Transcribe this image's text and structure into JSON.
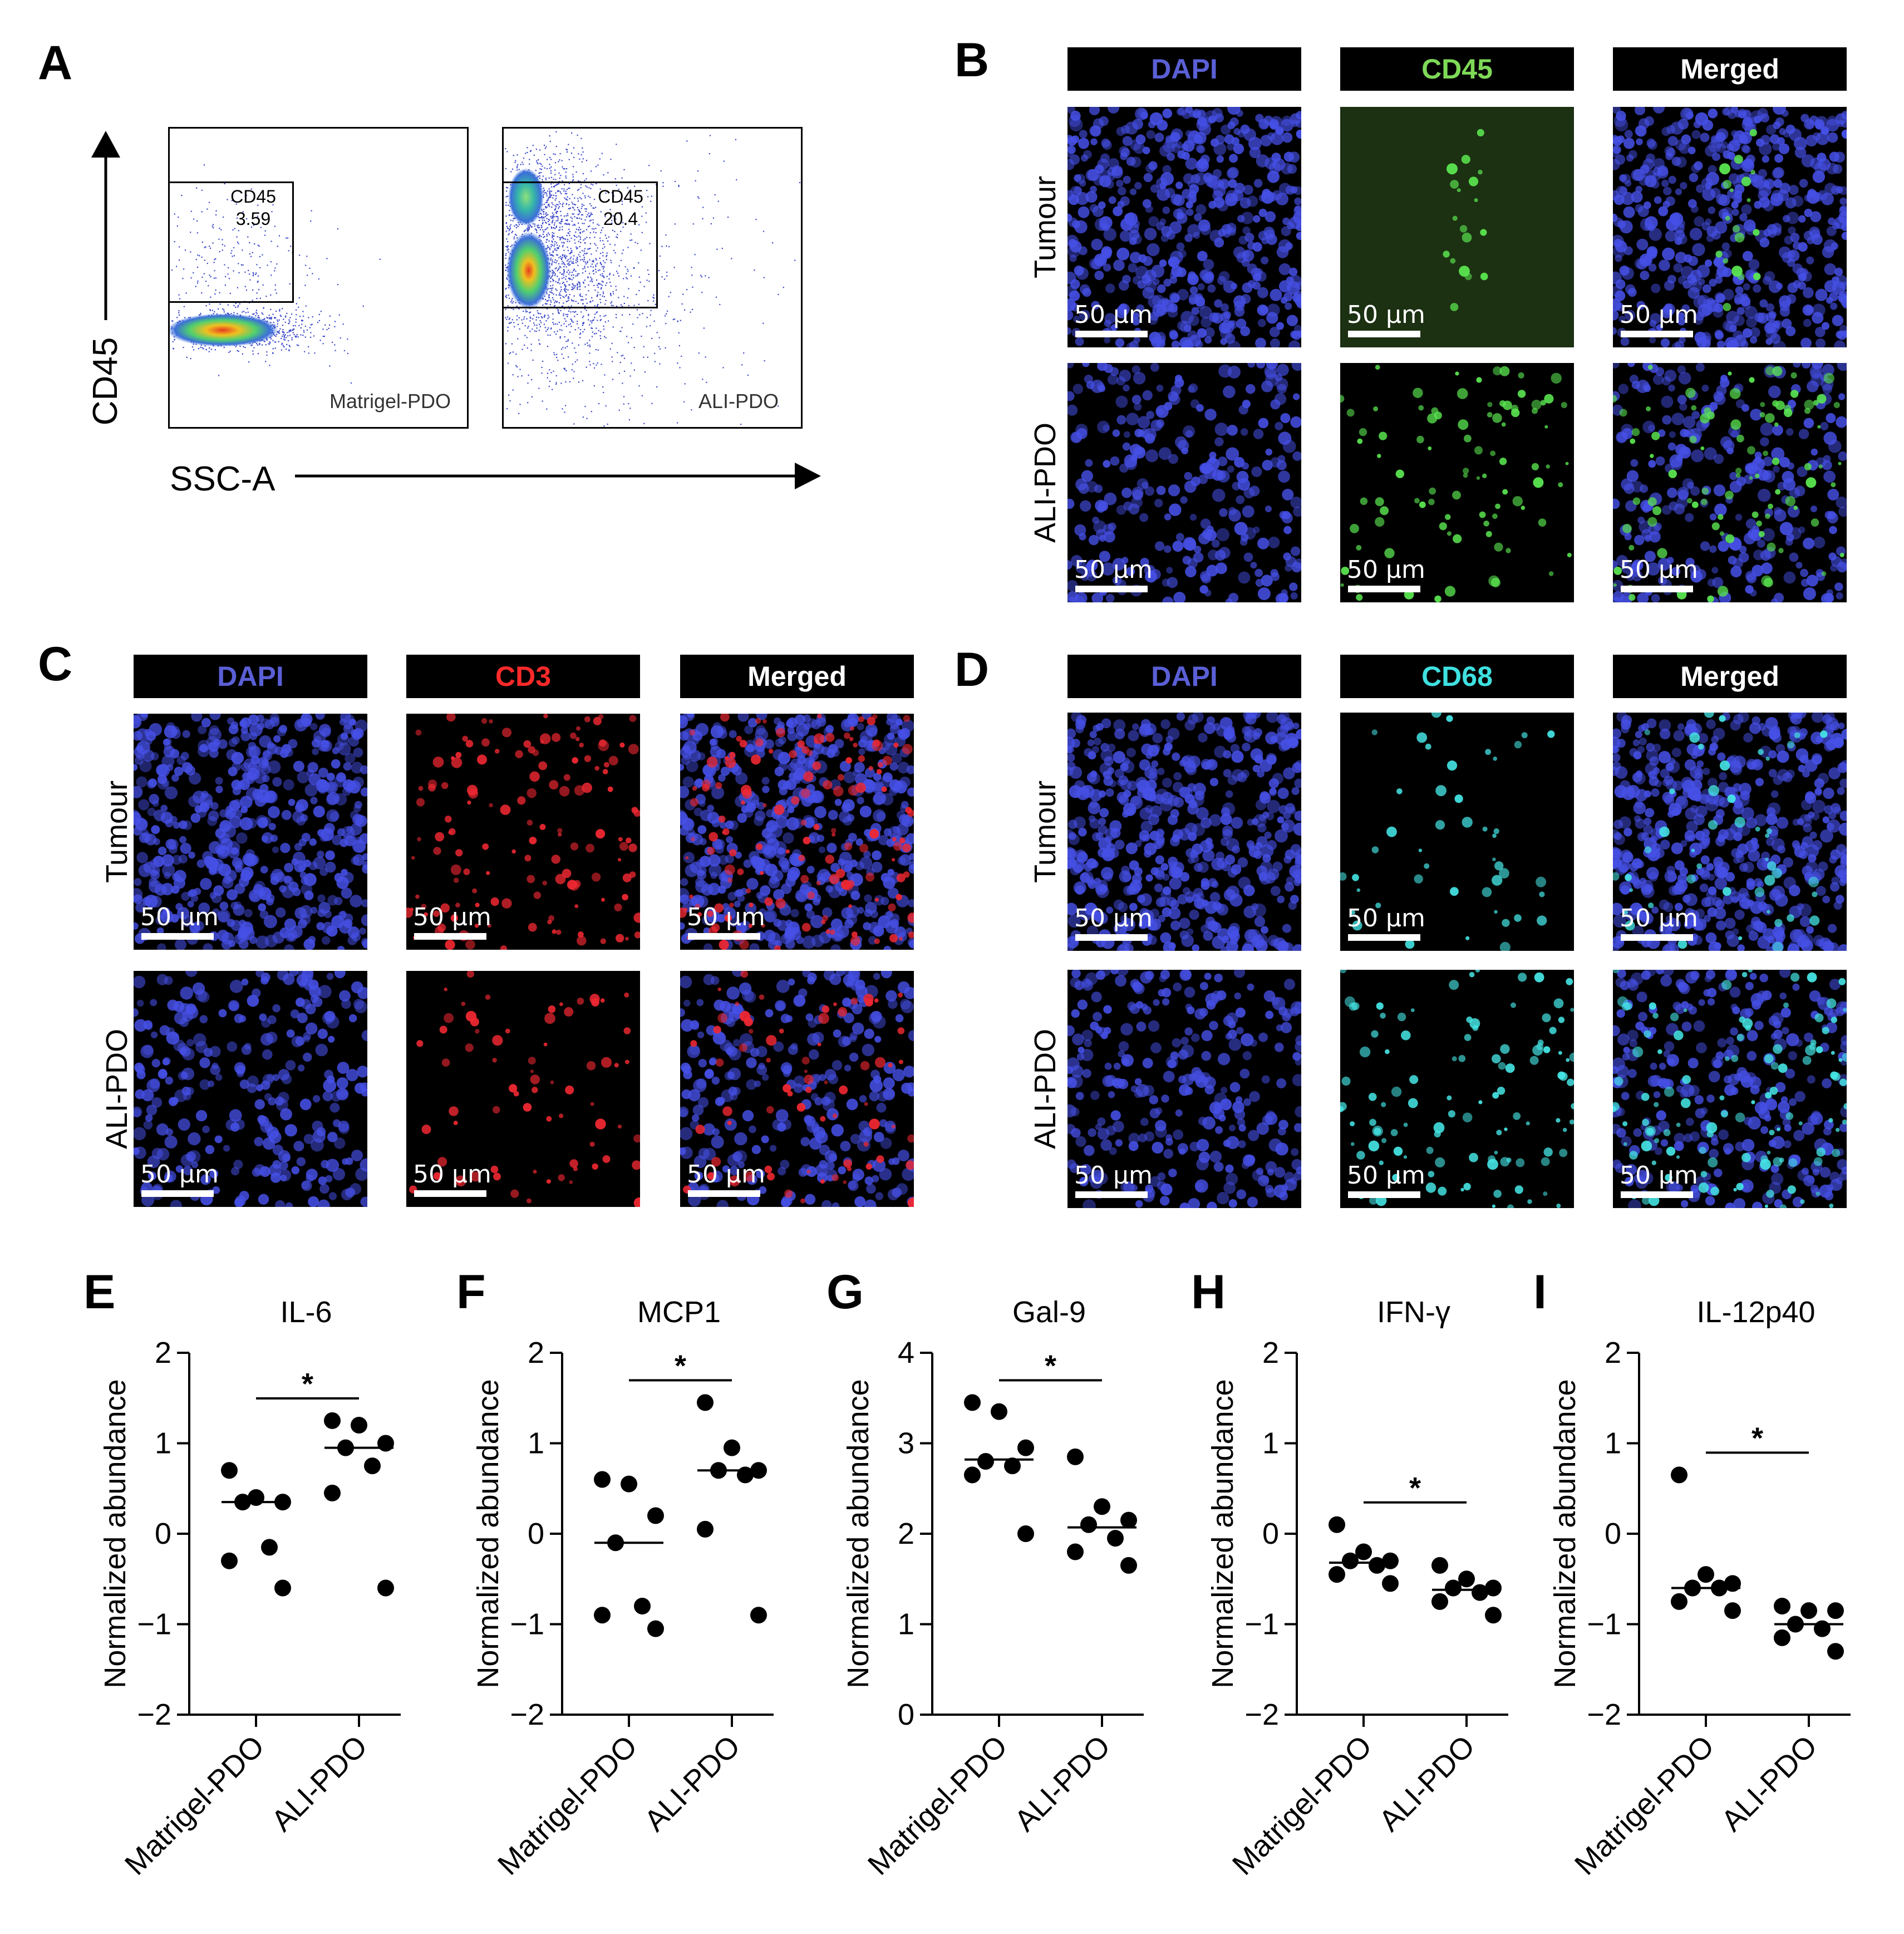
{
  "panels": {
    "A": "A",
    "B": "B",
    "C": "C",
    "D": "D",
    "E": "E",
    "F": "F",
    "G": "G",
    "H": "H",
    "I": "I"
  },
  "flow": {
    "y_axis_label": "CD45",
    "x_axis_label": "SSC-A",
    "plots": [
      {
        "sample": "Matrigel-PDO",
        "gate_label": "CD45",
        "gate_value": "3.59"
      },
      {
        "sample": "ALI-PDO",
        "gate_label": "CD45",
        "gate_value": "20.4"
      }
    ]
  },
  "micrographs": {
    "scale_bar": "50 µm",
    "row_labels": [
      "Tumour",
      "ALI-PDO"
    ],
    "panel_B": {
      "headers": [
        "DAPI",
        "CD45",
        "Merged"
      ],
      "header_colors": [
        "#5a5fd6",
        "#7ed957",
        "#ffffff"
      ]
    },
    "panel_C": {
      "headers": [
        "DAPI",
        "CD3",
        "Merged"
      ],
      "header_colors": [
        "#5a5fd6",
        "#ff2a2a",
        "#ffffff"
      ]
    },
    "panel_D": {
      "headers": [
        "DAPI",
        "CD68",
        "Merged"
      ],
      "header_colors": [
        "#5a5fd6",
        "#3fe0e0",
        "#ffffff"
      ]
    }
  },
  "chart_data": [
    {
      "type": "scatter",
      "title": "IL-6",
      "ylabel": "Normalized abundance",
      "categories": [
        "Matrigel-PDO",
        "ALI-PDO"
      ],
      "ylim": [
        -2,
        2
      ],
      "yticks": [
        "2",
        "1",
        "0",
        "−1",
        "−2"
      ],
      "significance": "*",
      "series": [
        {
          "values": [
            0.7,
            0.4,
            0.35,
            0.35,
            -0.15,
            -0.3,
            -0.6
          ],
          "median": 0.35
        },
        {
          "values": [
            1.25,
            1.2,
            1.0,
            0.95,
            0.75,
            0.45,
            -0.6
          ],
          "median": 0.95
        }
      ]
    },
    {
      "type": "scatter",
      "title": "MCP1",
      "ylabel": "Normalized abundance",
      "categories": [
        "Matrigel-PDO",
        "ALI-PDO"
      ],
      "ylim": [
        -2,
        2
      ],
      "yticks": [
        "2",
        "1",
        "0",
        "−1",
        "−2"
      ],
      "significance": "*",
      "series": [
        {
          "values": [
            0.6,
            0.55,
            0.2,
            -0.1,
            -0.8,
            -0.9,
            -1.05
          ],
          "median": -0.1
        },
        {
          "values": [
            1.45,
            0.95,
            0.7,
            0.7,
            0.65,
            0.05,
            -0.9
          ],
          "median": 0.7
        }
      ]
    },
    {
      "type": "scatter",
      "title": "Gal-9",
      "ylabel": "Normalized abundance",
      "categories": [
        "Matrigel-PDO",
        "ALI-PDO"
      ],
      "ylim": [
        0,
        4
      ],
      "yticks": [
        "4",
        "3",
        "2",
        "1",
        "0"
      ],
      "significance": "*",
      "series": [
        {
          "values": [
            3.45,
            3.35,
            2.95,
            2.8,
            2.75,
            2.65,
            2.0
          ],
          "median": 2.82
        },
        {
          "values": [
            2.85,
            2.3,
            2.15,
            2.1,
            1.95,
            1.8,
            1.65
          ],
          "median": 2.07
        }
      ]
    },
    {
      "type": "scatter",
      "title": "IFN-γ",
      "ylabel": "Normalized abundance",
      "categories": [
        "Matrigel-PDO",
        "ALI-PDO"
      ],
      "ylim": [
        -2,
        2
      ],
      "yticks": [
        "2",
        "1",
        "0",
        "−1",
        "−2"
      ],
      "significance": "*",
      "series": [
        {
          "values": [
            0.1,
            -0.2,
            -0.3,
            -0.3,
            -0.35,
            -0.45,
            -0.55
          ],
          "median": -0.32
        },
        {
          "values": [
            -0.35,
            -0.5,
            -0.6,
            -0.6,
            -0.65,
            -0.75,
            -0.9
          ],
          "median": -0.62
        }
      ]
    },
    {
      "type": "scatter",
      "title": "IL-12p40",
      "ylabel": "Normalized abundance",
      "categories": [
        "Matrigel-PDO",
        "ALI-PDO"
      ],
      "ylim": [
        -2,
        2
      ],
      "yticks": [
        "2",
        "1",
        "0",
        "−1",
        "−2"
      ],
      "significance": "*",
      "series": [
        {
          "values": [
            0.65,
            -0.45,
            -0.55,
            -0.6,
            -0.6,
            -0.75,
            -0.85
          ],
          "median": -0.6
        },
        {
          "values": [
            -0.8,
            -0.85,
            -0.85,
            -1.0,
            -1.05,
            -1.15,
            -1.3
          ],
          "median": -1.0
        }
      ]
    }
  ]
}
